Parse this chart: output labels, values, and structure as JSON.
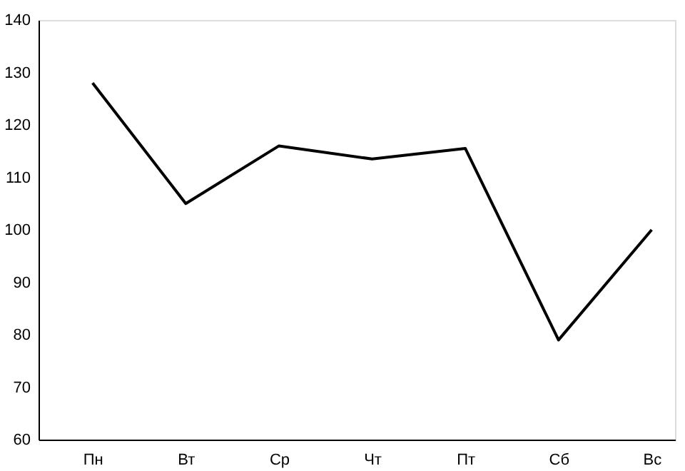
{
  "chart_data": {
    "type": "line",
    "categories": [
      "Пн",
      "Вт",
      "Ср",
      "Чт",
      "Пт",
      "Сб",
      "Вс"
    ],
    "series": [
      {
        "color": "#000000",
        "values": [
          128,
          105,
          116,
          113.5,
          115.5,
          79,
          100
        ]
      }
    ],
    "ylim": [
      60,
      140
    ],
    "yticks": [
      60,
      70,
      80,
      90,
      100,
      110,
      120,
      130,
      140
    ],
    "grid": false,
    "marker": "none",
    "line_style": "solid"
  }
}
